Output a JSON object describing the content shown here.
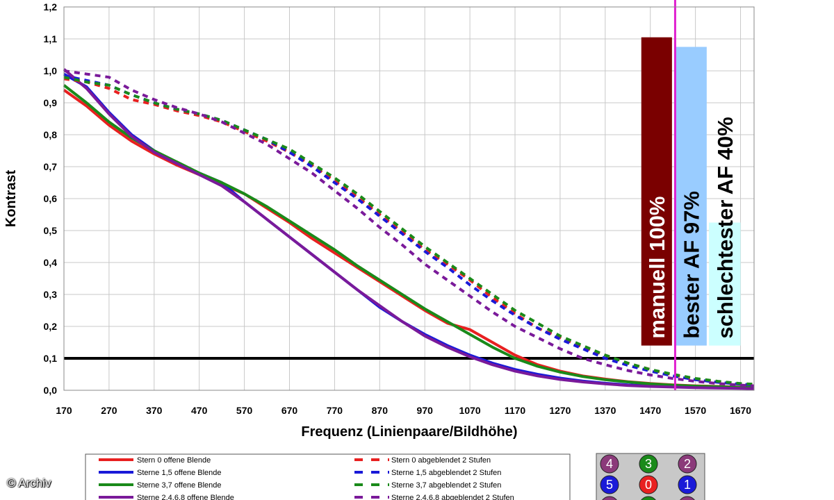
{
  "credit": "© Archiv",
  "chart_data": {
    "type": "line",
    "title": "",
    "xlabel": "Frequenz (Linienpaare/Bildhöhe)",
    "ylabel": "Kontrast",
    "xlim": [
      170,
      1700
    ],
    "ylim": [
      0,
      1.2
    ],
    "x_ticks": [
      170,
      270,
      370,
      470,
      570,
      670,
      770,
      870,
      970,
      1070,
      1170,
      1270,
      1370,
      1470,
      1570,
      1670
    ],
    "y_ticks": [
      "0,0",
      "0,1",
      "0,2",
      "0,3",
      "0,4",
      "0,5",
      "0,6",
      "0,7",
      "0,8",
      "0,9",
      "1,0",
      "1,1",
      "1,2"
    ],
    "grid": true,
    "reference_line": {
      "y": 0.1,
      "color": "#000000"
    },
    "marker_line": {
      "x": 1525,
      "color": "#e020d0"
    },
    "bars": [
      {
        "label": "manuell 100%",
        "x_from": 1450,
        "x_to": 1518,
        "y_top": 1.105,
        "y_bottom": 0.14,
        "fill": "#7a0000",
        "text_color": "#ffffff"
      },
      {
        "label": "bester AF 97%",
        "x_from": 1526,
        "x_to": 1595,
        "y_top": 1.075,
        "y_bottom": 0.14,
        "fill": "#99ccff",
        "text_color": "#000000"
      },
      {
        "label": "schlechtester AF 40%",
        "x_from": 1600,
        "x_to": 1670,
        "y_top": 0.525,
        "y_bottom": 0.14,
        "fill": "#ccffff",
        "text_color": "#000000"
      }
    ],
    "series": [
      {
        "name": "Stern 0 offene Blende",
        "color": "#e82020",
        "dash": false,
        "x": [
          170,
          220,
          270,
          320,
          370,
          420,
          470,
          520,
          570,
          620,
          670,
          720,
          770,
          820,
          870,
          920,
          970,
          1020,
          1070,
          1120,
          1170,
          1220,
          1270,
          1320,
          1370,
          1420,
          1470,
          1520,
          1570,
          1620,
          1670,
          1700
        ],
        "y": [
          0.94,
          0.89,
          0.83,
          0.78,
          0.74,
          0.705,
          0.675,
          0.645,
          0.615,
          0.57,
          0.525,
          0.475,
          0.43,
          0.385,
          0.34,
          0.295,
          0.25,
          0.21,
          0.19,
          0.15,
          0.11,
          0.08,
          0.06,
          0.045,
          0.035,
          0.027,
          0.021,
          0.017,
          0.014,
          0.012,
          0.01,
          0.009
        ]
      },
      {
        "name": "Sterne 1,5 offene Blende",
        "color": "#1a1ad8",
        "dash": false,
        "x": [
          170,
          220,
          270,
          320,
          370,
          420,
          470,
          520,
          570,
          620,
          670,
          720,
          770,
          820,
          870,
          920,
          970,
          1020,
          1070,
          1120,
          1170,
          1220,
          1270,
          1320,
          1370,
          1420,
          1470,
          1520,
          1570,
          1620,
          1670,
          1700
        ],
        "y": [
          0.99,
          0.95,
          0.87,
          0.8,
          0.75,
          0.71,
          0.68,
          0.65,
          0.59,
          0.535,
          0.48,
          0.425,
          0.37,
          0.315,
          0.26,
          0.215,
          0.175,
          0.14,
          0.11,
          0.085,
          0.065,
          0.05,
          0.038,
          0.029,
          0.022,
          0.017,
          0.014,
          0.011,
          0.009,
          0.008,
          0.007,
          0.006
        ]
      },
      {
        "name": "Sterne 3,7 offene Blende",
        "color": "#1a8a1a",
        "dash": false,
        "x": [
          170,
          220,
          270,
          320,
          370,
          420,
          470,
          520,
          570,
          620,
          670,
          720,
          770,
          820,
          870,
          920,
          970,
          1020,
          1070,
          1120,
          1170,
          1220,
          1270,
          1320,
          1370,
          1420,
          1470,
          1520,
          1570,
          1620,
          1670,
          1700
        ],
        "y": [
          0.955,
          0.9,
          0.84,
          0.79,
          0.75,
          0.715,
          0.68,
          0.65,
          0.615,
          0.575,
          0.53,
          0.485,
          0.44,
          0.39,
          0.345,
          0.3,
          0.255,
          0.215,
          0.175,
          0.135,
          0.1,
          0.075,
          0.057,
          0.043,
          0.033,
          0.026,
          0.02,
          0.016,
          0.013,
          0.011,
          0.009,
          0.008
        ]
      },
      {
        "name": "Sterne 2,4,6,8 offene Blende",
        "color": "#7a1a9a",
        "dash": false,
        "x": [
          170,
          220,
          270,
          320,
          370,
          420,
          470,
          520,
          570,
          620,
          670,
          720,
          770,
          820,
          870,
          920,
          970,
          1020,
          1070,
          1120,
          1170,
          1220,
          1270,
          1320,
          1370,
          1420,
          1470,
          1520,
          1570,
          1620,
          1670,
          1700
        ],
        "y": [
          1.005,
          0.945,
          0.865,
          0.795,
          0.745,
          0.71,
          0.675,
          0.64,
          0.59,
          0.535,
          0.48,
          0.425,
          0.37,
          0.315,
          0.265,
          0.215,
          0.17,
          0.135,
          0.105,
          0.08,
          0.06,
          0.045,
          0.034,
          0.026,
          0.02,
          0.015,
          0.012,
          0.01,
          0.008,
          0.007,
          0.006,
          0.005
        ]
      },
      {
        "name": "Stern 0 abgeblendet 2 Stufen",
        "color": "#e82020",
        "dash": true,
        "x": [
          170,
          220,
          270,
          320,
          370,
          420,
          470,
          520,
          570,
          620,
          670,
          720,
          770,
          820,
          870,
          920,
          970,
          1020,
          1070,
          1120,
          1170,
          1220,
          1270,
          1320,
          1370,
          1420,
          1470,
          1520,
          1570,
          1620,
          1670,
          1700
        ],
        "y": [
          0.975,
          0.965,
          0.945,
          0.91,
          0.895,
          0.875,
          0.86,
          0.84,
          0.81,
          0.78,
          0.745,
          0.705,
          0.655,
          0.605,
          0.55,
          0.495,
          0.44,
          0.395,
          0.345,
          0.29,
          0.24,
          0.195,
          0.165,
          0.135,
          0.11,
          0.085,
          0.065,
          0.048,
          0.035,
          0.026,
          0.02,
          0.018
        ]
      },
      {
        "name": "Sterne 1,5 abgeblendet 2 Stufen",
        "color": "#1a1ad8",
        "dash": true,
        "x": [
          170,
          220,
          270,
          320,
          370,
          420,
          470,
          520,
          570,
          620,
          670,
          720,
          770,
          820,
          870,
          920,
          970,
          1020,
          1070,
          1120,
          1170,
          1220,
          1270,
          1320,
          1370,
          1420,
          1470,
          1520,
          1570,
          1620,
          1670,
          1700
        ],
        "y": [
          0.985,
          0.97,
          0.955,
          0.925,
          0.9,
          0.88,
          0.865,
          0.845,
          0.815,
          0.785,
          0.745,
          0.7,
          0.65,
          0.6,
          0.545,
          0.49,
          0.435,
          0.385,
          0.33,
          0.28,
          0.235,
          0.195,
          0.16,
          0.13,
          0.1,
          0.078,
          0.06,
          0.045,
          0.033,
          0.025,
          0.019,
          0.017
        ]
      },
      {
        "name": "Sterne 3,7 abgeblendet 2 Stufen",
        "color": "#1a8a1a",
        "dash": true,
        "x": [
          170,
          220,
          270,
          320,
          370,
          420,
          470,
          520,
          570,
          620,
          670,
          720,
          770,
          820,
          870,
          920,
          970,
          1020,
          1070,
          1120,
          1170,
          1220,
          1270,
          1320,
          1370,
          1420,
          1470,
          1520,
          1570,
          1620,
          1670,
          1700
        ],
        "y": [
          0.98,
          0.965,
          0.955,
          0.925,
          0.9,
          0.88,
          0.865,
          0.845,
          0.815,
          0.785,
          0.755,
          0.71,
          0.665,
          0.615,
          0.56,
          0.505,
          0.45,
          0.4,
          0.35,
          0.3,
          0.25,
          0.21,
          0.17,
          0.14,
          0.11,
          0.085,
          0.065,
          0.05,
          0.037,
          0.028,
          0.021,
          0.019
        ]
      },
      {
        "name": "Sterne 2,4,6,8 abgeblendet 2 Stufen",
        "color": "#7a1a9a",
        "dash": true,
        "x": [
          170,
          220,
          270,
          320,
          370,
          420,
          470,
          520,
          570,
          620,
          670,
          720,
          770,
          820,
          870,
          920,
          970,
          1020,
          1070,
          1120,
          1170,
          1220,
          1270,
          1320,
          1370,
          1420,
          1470,
          1520,
          1570,
          1620,
          1670,
          1700
        ],
        "y": [
          1.0,
          0.99,
          0.98,
          0.94,
          0.91,
          0.885,
          0.865,
          0.84,
          0.805,
          0.77,
          0.725,
          0.68,
          0.625,
          0.57,
          0.51,
          0.455,
          0.395,
          0.345,
          0.295,
          0.245,
          0.2,
          0.165,
          0.13,
          0.1,
          0.08,
          0.062,
          0.048,
          0.037,
          0.028,
          0.021,
          0.016,
          0.014
        ]
      }
    ],
    "legend": {
      "position": "bottom"
    },
    "star_grid": [
      [
        {
          "label": "4",
          "color": "#8b3a7a"
        },
        {
          "label": "3",
          "color": "#1a8a1a"
        },
        {
          "label": "2",
          "color": "#8b3a7a"
        }
      ],
      [
        {
          "label": "5",
          "color": "#1a1ad8"
        },
        {
          "label": "0",
          "color": "#e82020"
        },
        {
          "label": "1",
          "color": "#1a1ad8"
        }
      ],
      [
        {
          "label": "",
          "color": "#8b3a7a"
        },
        {
          "label": "",
          "color": "#1a8a1a"
        },
        {
          "label": "",
          "color": "#8b3a7a"
        }
      ]
    ]
  }
}
